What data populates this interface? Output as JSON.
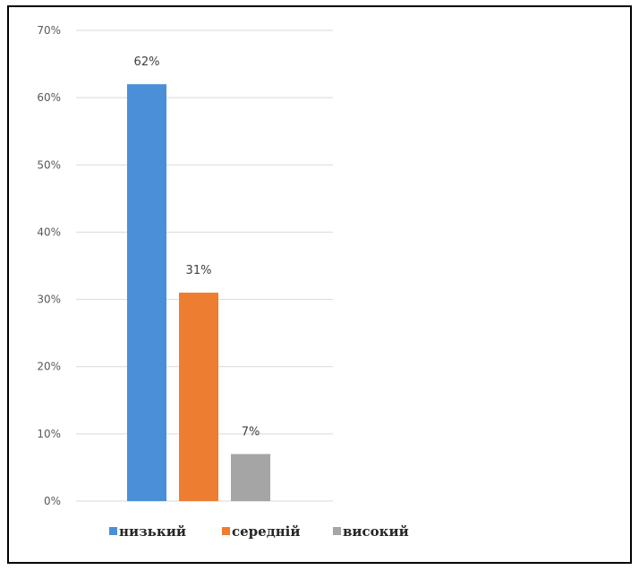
{
  "chart_data": {
    "type": "bar",
    "categories": [
      "низький",
      "середній",
      "високий"
    ],
    "values": [
      62,
      31,
      7
    ],
    "data_labels": [
      "62%",
      "31%",
      "7%"
    ],
    "colors": [
      "#4a90d9",
      "#ed7d31",
      "#a5a5a5"
    ],
    "ylim": [
      0,
      70
    ],
    "y_ticks": [
      0,
      10,
      20,
      30,
      40,
      50,
      60,
      70
    ],
    "y_tick_labels": [
      "0%",
      "10%",
      "20%",
      "30%",
      "40%",
      "50%",
      "60%",
      "70%"
    ],
    "grid": true,
    "legend": {
      "placement": "bottom",
      "entries": [
        "низький",
        "середній",
        "високий"
      ]
    },
    "title": "",
    "xlabel": "",
    "ylabel": ""
  }
}
